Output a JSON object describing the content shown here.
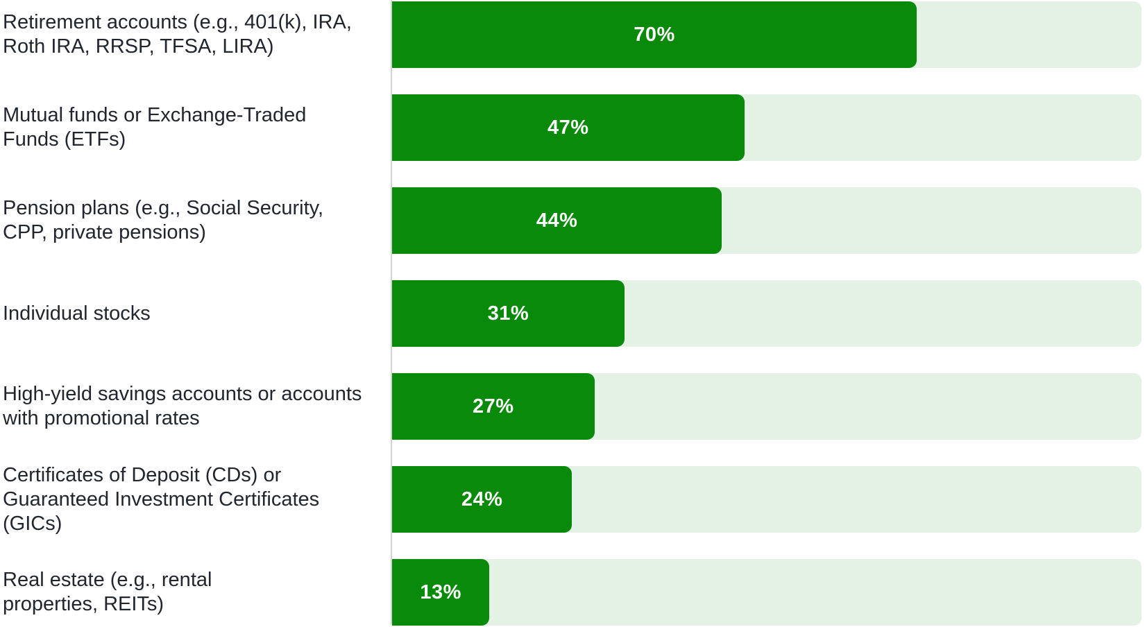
{
  "chart_data": {
    "type": "bar",
    "orientation": "horizontal",
    "title": "",
    "xlabel": "",
    "ylabel": "",
    "xlim": [
      0,
      100
    ],
    "grid": false,
    "legend": false,
    "categories": [
      "Retirement accounts (e.g., 401(k), IRA,\nRoth IRA, RRSP, TFSA, LIRA)",
      "Mutual funds or Exchange-Traded\nFunds (ETFs)",
      "Pension plans (e.g., Social Security,\nCPP, private pensions)",
      "Individual stocks",
      "High-yield savings accounts or accounts\nwith promotional rates",
      "Certificates of Deposit (CDs) or\nGuaranteed Investment Certificates (GICs)",
      "Real estate (e.g., rental\nproperties, REITs)"
    ],
    "values": [
      70,
      47,
      44,
      31,
      27,
      24,
      13
    ],
    "value_labels": [
      "70%",
      "47%",
      "44%",
      "31%",
      "27%",
      "24%",
      "13%"
    ],
    "colors": {
      "bar_fill": "#0a8a0a",
      "bar_track": "#e4f2e6",
      "value_text": "#ffffff",
      "label_text": "#21262e",
      "axis_line": "#d2d2d2",
      "background": "#ffffff"
    }
  }
}
